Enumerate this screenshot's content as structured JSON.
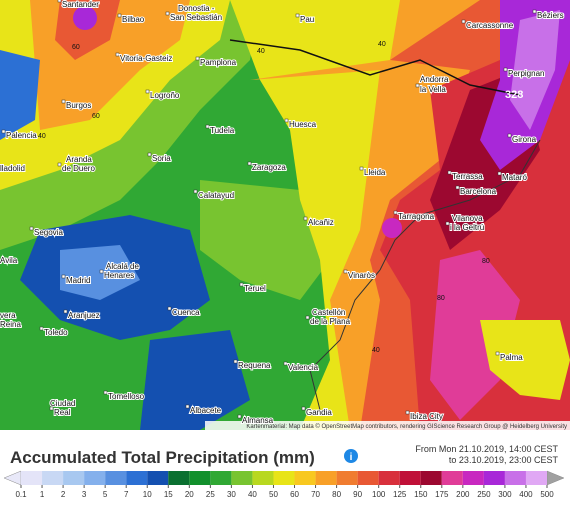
{
  "map": {
    "cities": [
      "Santander",
      "Bilbao",
      "Donostia -",
      "San Sebastián",
      "Pau",
      "Carcassonne",
      "Béziers",
      "Vitoria-Gasteiz",
      "Pamplona",
      "Perpignan",
      "Andorra",
      "la Vella",
      "Logroño",
      "Burgos",
      "Huesca",
      "Girona",
      "Palencia",
      "Tudela",
      "Aranda",
      "de Duero",
      "Soria",
      "Zaragoza",
      "Lleida",
      "lladolid",
      "Terrassa",
      "Mataró",
      "Barcelona",
      "Calatayud",
      "Tarragona",
      "Vilanova",
      "i la Geltrú",
      "Segovia",
      "Alcañiz",
      "Avila",
      "Madrid",
      "Alcalá de",
      "Henares",
      "Teruel",
      "Vinaròs",
      "Aranjuez",
      "Cuenca",
      "Castellón",
      "de la Plana",
      "Toledo",
      "vera",
      "Reina",
      "Palma",
      "Requena",
      "Valencia",
      "Tomelloso",
      "Ciudad",
      "Real",
      "Albacete",
      "Gandia",
      "Almansa",
      "Ibiza City"
    ],
    "contour_labels": [
      "60",
      "60",
      "40",
      "40",
      "40",
      "80",
      "328",
      "80",
      "40"
    ],
    "attribution": "Kartenmaterial: Map data © OpenStreetMap contributors, rendering GIScience Research Group @ Heidelberg University"
  },
  "legend": {
    "title": "Accumulated Total Precipitation (mm)",
    "period_from": "From Mon 21.10.2019, 14:00 CEST",
    "period_to": "to 23.10.2019, 23:00 CEST",
    "info": "i",
    "values": [
      0.1,
      1,
      2,
      3,
      5,
      7,
      10,
      15,
      20,
      25,
      30,
      40,
      50,
      60,
      70,
      80,
      90,
      100,
      125,
      150,
      175,
      200,
      250,
      300,
      400,
      500
    ],
    "colors": [
      "#e4e4f8",
      "#c8d8f4",
      "#a8c8f0",
      "#84b0ec",
      "#5890e0",
      "#2c70d4",
      "#1450b0",
      "#0a7030",
      "#12902c",
      "#30a834",
      "#78c430",
      "#b8d820",
      "#e8e418",
      "#f8c820",
      "#f8a028",
      "#f07c30",
      "#e85834",
      "#d8303c",
      "#c01038",
      "#9c0830",
      "#e03c98",
      "#c828c0",
      "#a828d8",
      "#c870e8",
      "#e0a8f4"
    ],
    "low_color": "#e8e8f8",
    "high_color": "#a0a0a0"
  }
}
